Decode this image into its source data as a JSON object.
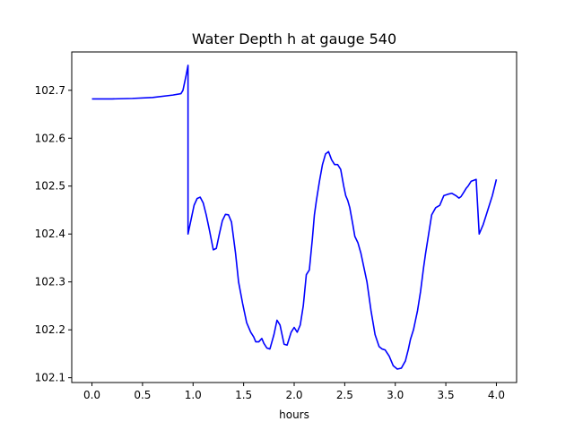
{
  "chart_data": {
    "type": "line",
    "title": "Water Depth h at gauge 540",
    "xlabel": "hours",
    "ylabel": "",
    "xlim": [
      -0.2,
      4.2
    ],
    "ylim": [
      102.09,
      102.78
    ],
    "xticks": [
      0.0,
      0.5,
      1.0,
      1.5,
      2.0,
      2.5,
      3.0,
      3.5,
      4.0
    ],
    "xtick_labels": [
      "0.0",
      "0.5",
      "1.0",
      "1.5",
      "2.0",
      "2.5",
      "3.0",
      "3.5",
      "4.0"
    ],
    "yticks": [
      102.1,
      102.2,
      102.3,
      102.4,
      102.5,
      102.6,
      102.7
    ],
    "ytick_labels": [
      "102.1",
      "102.2",
      "102.3",
      "102.4",
      "102.5",
      "102.6",
      "102.7"
    ],
    "grid": false,
    "series": [
      {
        "color": "#0000ff",
        "x": [
          0.0,
          0.2,
          0.4,
          0.6,
          0.8,
          0.88,
          0.9,
          0.93,
          0.95,
          0.95,
          0.98,
          1.01,
          1.04,
          1.07,
          1.1,
          1.13,
          1.16,
          1.2,
          1.23,
          1.26,
          1.29,
          1.32,
          1.35,
          1.38,
          1.42,
          1.45,
          1.49,
          1.53,
          1.57,
          1.6,
          1.62,
          1.65,
          1.68,
          1.7,
          1.73,
          1.76,
          1.8,
          1.83,
          1.86,
          1.9,
          1.93,
          1.97,
          2.0,
          2.03,
          2.06,
          2.09,
          2.12,
          2.15,
          2.18,
          2.2,
          2.22,
          2.25,
          2.28,
          2.31,
          2.34,
          2.37,
          2.4,
          2.43,
          2.46,
          2.49,
          2.51,
          2.53,
          2.55,
          2.58,
          2.6,
          2.63,
          2.66,
          2.69,
          2.72,
          2.76,
          2.8,
          2.84,
          2.87,
          2.9,
          2.94,
          2.98,
          3.02,
          3.06,
          3.1,
          3.13,
          3.15,
          3.18,
          3.2,
          3.22,
          3.25,
          3.28,
          3.3,
          3.33,
          3.36,
          3.4,
          3.44,
          3.48,
          3.52,
          3.56,
          3.6,
          3.63,
          3.65,
          3.68,
          3.7,
          3.72,
          3.75,
          3.8,
          3.83,
          3.87,
          3.9,
          3.93,
          3.96,
          4.0
        ],
        "y": [
          102.682,
          102.682,
          102.683,
          102.685,
          102.69,
          102.693,
          102.7,
          102.73,
          102.752,
          102.4,
          102.43,
          102.46,
          102.474,
          102.477,
          102.465,
          102.44,
          102.41,
          102.367,
          102.37,
          102.4,
          102.428,
          102.441,
          102.44,
          102.425,
          102.36,
          102.3,
          102.255,
          102.215,
          102.195,
          102.185,
          102.175,
          102.175,
          102.182,
          102.172,
          102.162,
          102.16,
          102.19,
          102.22,
          102.21,
          102.17,
          102.168,
          102.195,
          102.205,
          102.195,
          102.21,
          102.25,
          102.315,
          102.325,
          102.39,
          102.44,
          102.47,
          102.51,
          102.545,
          102.567,
          102.572,
          102.555,
          102.545,
          102.545,
          102.535,
          102.5,
          102.48,
          102.47,
          102.455,
          102.42,
          102.395,
          102.382,
          102.36,
          102.33,
          102.3,
          102.24,
          102.19,
          102.165,
          102.16,
          102.158,
          102.145,
          102.125,
          102.118,
          102.12,
          102.135,
          102.16,
          102.18,
          102.2,
          102.22,
          102.24,
          102.28,
          102.33,
          102.36,
          102.4,
          102.44,
          102.455,
          102.46,
          102.48,
          102.483,
          102.485,
          102.48,
          102.475,
          102.478,
          102.488,
          102.495,
          102.5,
          102.51,
          102.514,
          102.4,
          102.42,
          102.44,
          102.46,
          102.48,
          102.514
        ]
      }
    ]
  }
}
